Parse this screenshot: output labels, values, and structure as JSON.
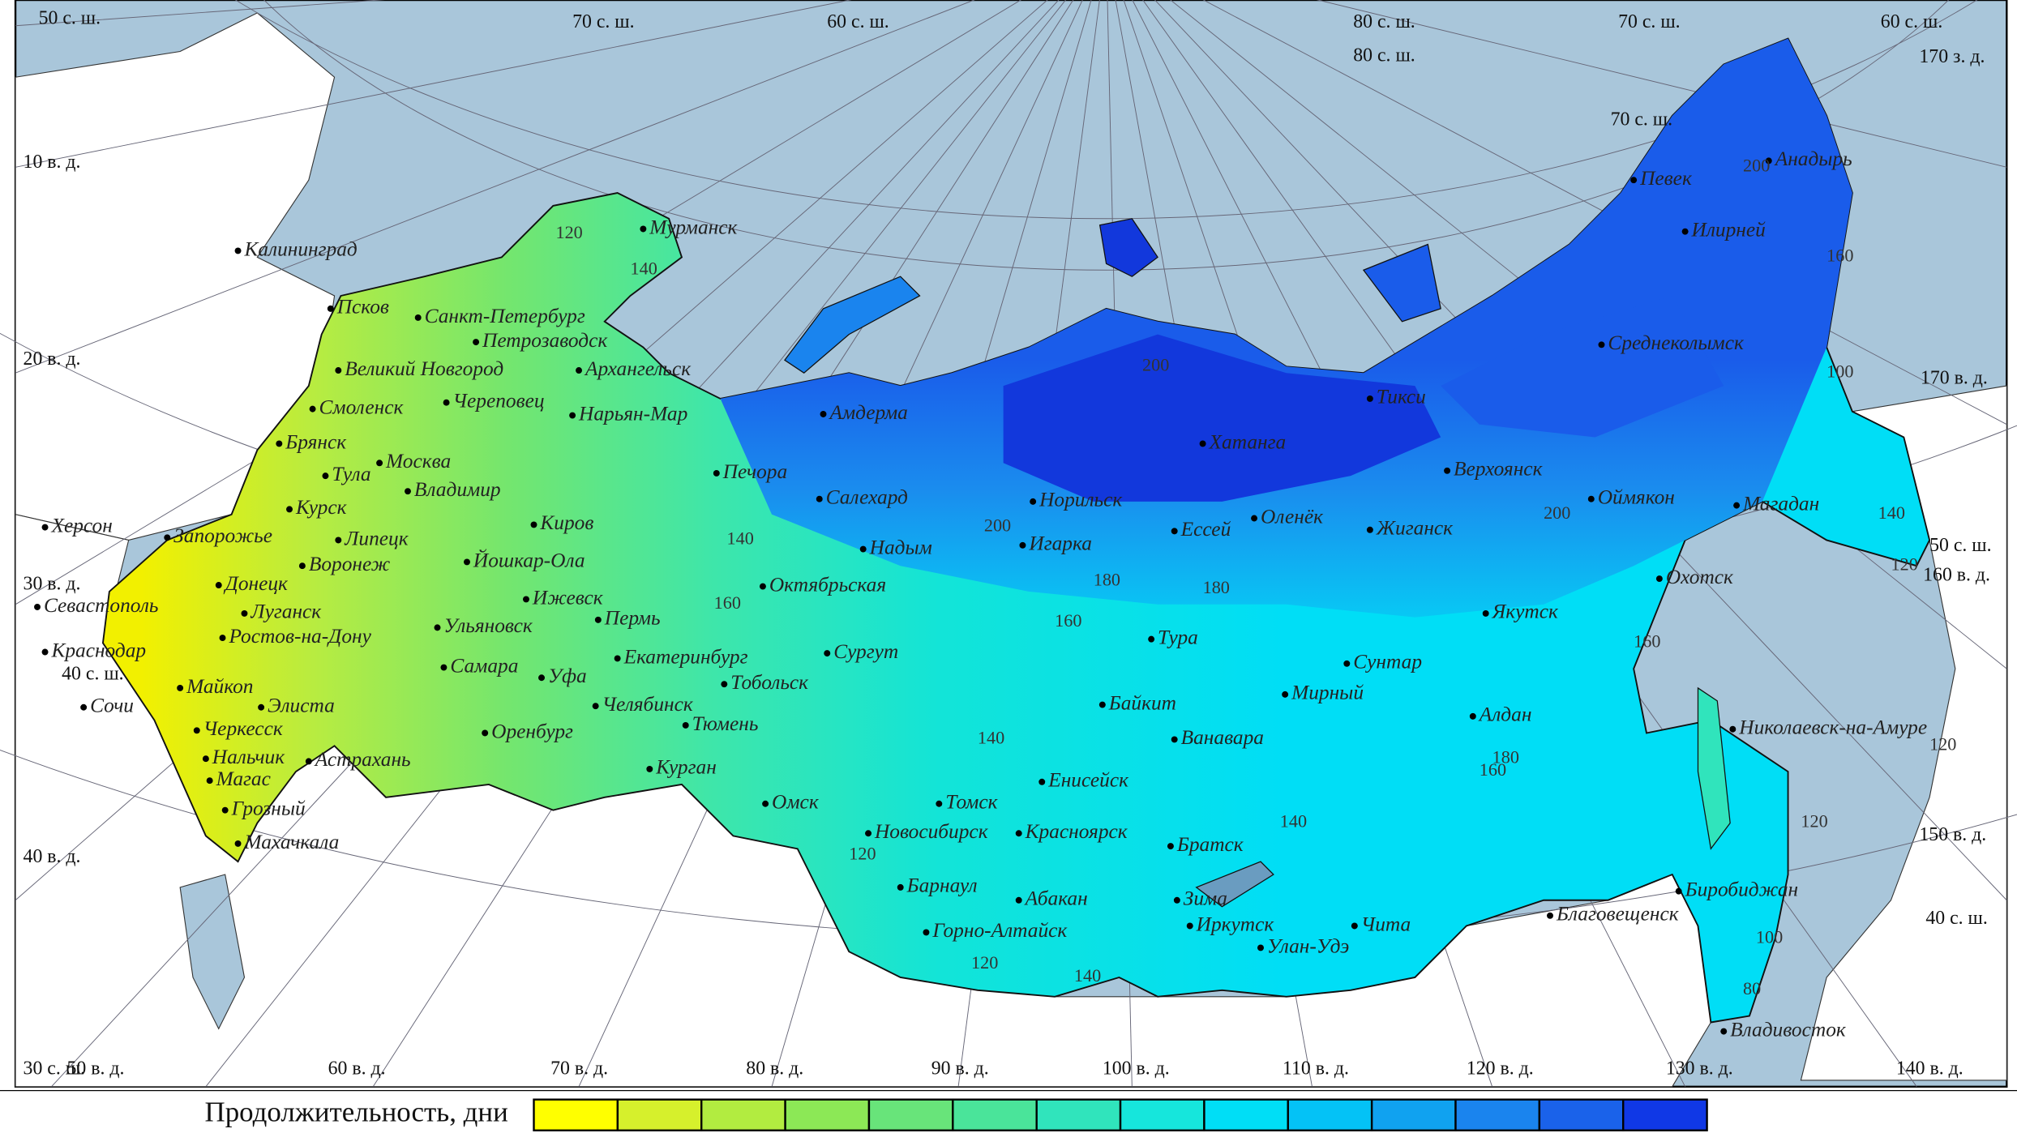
{
  "map": {
    "grid_labels": [
      "50 с. ш.",
      "70 с. ш.",
      "60 с. ш.",
      "80 с. ш.",
      "80 с. ш.",
      "70 с. ш.",
      "60 с. ш.",
      "170 з. д.",
      "70 с. ш.",
      "10 в. д.",
      "20 в. д.",
      "30 в. д.",
      "40 с. ш.",
      "40 в. д.",
      "30 с. ш.",
      "50 в. д.",
      "60 в. д.",
      "70 в. д.",
      "80 в. д.",
      "90 в. д.",
      "100 в. д.",
      "110 в. д.",
      "120 в. д.",
      "130 в. д.",
      "140 в. д.",
      "170 в. д.",
      "50 с. ш.",
      "160 в. д.",
      "150 в. д.",
      "40 с. ш."
    ],
    "cities": [
      "Мурманск",
      "Санкт-Петербург",
      "Петрозаводск",
      "Архангельск",
      "Псков",
      "Великий Новгород",
      "Череповец",
      "Нарьян-Мар",
      "Амдерма",
      "Смоленск",
      "Брянск",
      "Москва",
      "Тула",
      "Владимир",
      "Курск",
      "Липецк",
      "Воронеж",
      "Киров",
      "Йошкар-Ола",
      "Ижевск",
      "Пермь",
      "Донецк",
      "Луганск",
      "Ростов-на-Дону",
      "Севастополь",
      "Херсон",
      "Запорожье",
      "Краснодар",
      "Майкоп",
      "Сочи",
      "Элиста",
      "Черкесск",
      "Нальчик",
      "Магас",
      "Грозный",
      "Махачкала",
      "Астрахань",
      "Ульяновск",
      "Самара",
      "Уфа",
      "Оренбург",
      "Челябинск",
      "Екатеринбург",
      "Тюмень",
      "Курган",
      "Тобольск",
      "Сургут",
      "Омск",
      "Томск",
      "Новосибирск",
      "Барнаул",
      "Горно-Алтайск",
      "Абакан",
      "Красноярск",
      "Енисейск",
      "Печора",
      "Салехард",
      "Надым",
      "Октябрьская",
      "Норильск",
      "Игарка",
      "Хатанга",
      "Тикси",
      "Ессей",
      "Оленёк",
      "Тура",
      "Байкит",
      "Ванавара",
      "Мирный",
      "Сунтар",
      "Жиганск",
      "Верхоянск",
      "Якутск",
      "Алдан",
      "Оймякон",
      "Среднеколымск",
      "Илирней",
      "Певек",
      "Анадырь",
      "Магадан",
      "Охотск",
      "Николаевск-на-Амуре",
      "Благовещенск",
      "Биробиджан",
      "Владивосток",
      "Братск",
      "Зима",
      "Иркутск",
      "Улан-Удэ",
      "Чита",
      "Калининград"
    ],
    "isolines": [
      120,
      140,
      140,
      160,
      160,
      200,
      180,
      180,
      160,
      140,
      200,
      200,
      160,
      160,
      180,
      140,
      140,
      120,
      120,
      140,
      120,
      120,
      100,
      80,
      100,
      120,
      200
    ],
    "legend": {
      "title": "Продолжительность, дни",
      "colors": [
        "#ffff00",
        "#d6f02c",
        "#b2ec40",
        "#8ce856",
        "#68e47a",
        "#4ae49a",
        "#30e4bc",
        "#16e6dc",
        "#00def6",
        "#04c2f6",
        "#10a2f0",
        "#1a84ee",
        "#1a62ea",
        "#1038e6"
      ]
    }
  }
}
